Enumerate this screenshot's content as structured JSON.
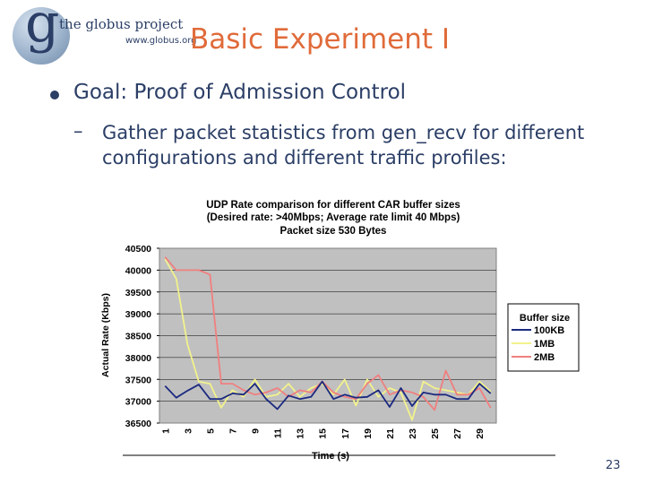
{
  "slide": {
    "logo": {
      "name": "the globus project",
      "url": "www.globus.org",
      "glyph": "g"
    },
    "title": "Basic Experiment I",
    "bullet1": "Goal: Proof of Admission Control",
    "bullet2_dash": "–",
    "bullet2": "Gather packet statistics from gen_recv for different configurations and different traffic profiles:",
    "page_number": "23"
  },
  "colors": {
    "title": "#e06b3a",
    "text": "#2b3e66",
    "plot_area": "#c0c0c0",
    "series_100KB": "#1c2a80",
    "series_1MB": "#f2f28c",
    "series_2MB": "#f07f7f"
  },
  "chart_data": {
    "type": "line",
    "title": "UDP Rate comparison for different CAR buffer sizes",
    "subtitle": "(Desired rate: >40Mbps; Average rate limit 40 Mbps)",
    "subtitle2": "Packet size 530 Bytes",
    "xlabel": "Time (s)",
    "ylabel": "Actual Rate (Kbps)",
    "ylim": [
      36500,
      40500
    ],
    "yticks": [
      36500,
      37000,
      37500,
      38000,
      38500,
      39000,
      39500,
      40000,
      40500
    ],
    "xlim": [
      1,
      30
    ],
    "xticks": [
      1,
      3,
      5,
      7,
      9,
      11,
      13,
      15,
      17,
      19,
      21,
      23,
      25,
      27,
      29
    ],
    "grid": "horizontal",
    "legend_title": "Buffer size",
    "legend_position": "right",
    "series": [
      {
        "name": "100KB",
        "x": [
          1,
          2,
          3,
          4,
          5,
          6,
          7,
          8,
          9,
          10,
          11,
          12,
          13,
          14,
          15,
          16,
          17,
          18,
          19,
          20,
          21,
          22,
          23,
          24,
          25,
          26,
          27,
          28,
          29,
          30
        ],
        "values": [
          37350,
          37080,
          37240,
          37380,
          37050,
          37050,
          37180,
          37150,
          37400,
          37050,
          36820,
          37130,
          37050,
          37100,
          37450,
          37050,
          37150,
          37080,
          37100,
          37250,
          36870,
          37300,
          36890,
          37200,
          37150,
          37150,
          37050,
          37050,
          37400,
          37180
        ]
      },
      {
        "name": "1MB",
        "x": [
          1,
          2,
          3,
          4,
          5,
          6,
          7,
          8,
          9,
          10,
          11,
          12,
          13,
          14,
          15,
          16,
          17,
          18,
          19,
          20,
          21,
          22,
          23,
          24,
          25,
          26,
          27,
          28,
          29,
          30
        ],
        "values": [
          40250,
          39800,
          38300,
          37450,
          37400,
          36850,
          37250,
          37100,
          37500,
          37100,
          37150,
          37400,
          37100,
          37300,
          37400,
          37150,
          37500,
          36900,
          37500,
          37100,
          37300,
          37200,
          36570,
          37450,
          37300,
          37250,
          37200,
          37150,
          37450,
          37220
        ]
      },
      {
        "name": "2MB",
        "x": [
          1,
          2,
          3,
          4,
          5,
          6,
          7,
          8,
          9,
          10,
          11,
          12,
          13,
          14,
          15,
          16,
          17,
          18,
          19,
          20,
          21,
          22,
          23,
          24,
          25,
          26,
          27,
          28,
          29,
          30
        ],
        "values": [
          40300,
          40000,
          40000,
          40000,
          39900,
          37400,
          37400,
          37250,
          37150,
          37200,
          37300,
          37100,
          37250,
          37200,
          37450,
          37200,
          37100,
          37050,
          37400,
          37600,
          37150,
          37250,
          37200,
          37100,
          36800,
          37700,
          37150,
          37150,
          37300,
          36850
        ]
      }
    ]
  }
}
